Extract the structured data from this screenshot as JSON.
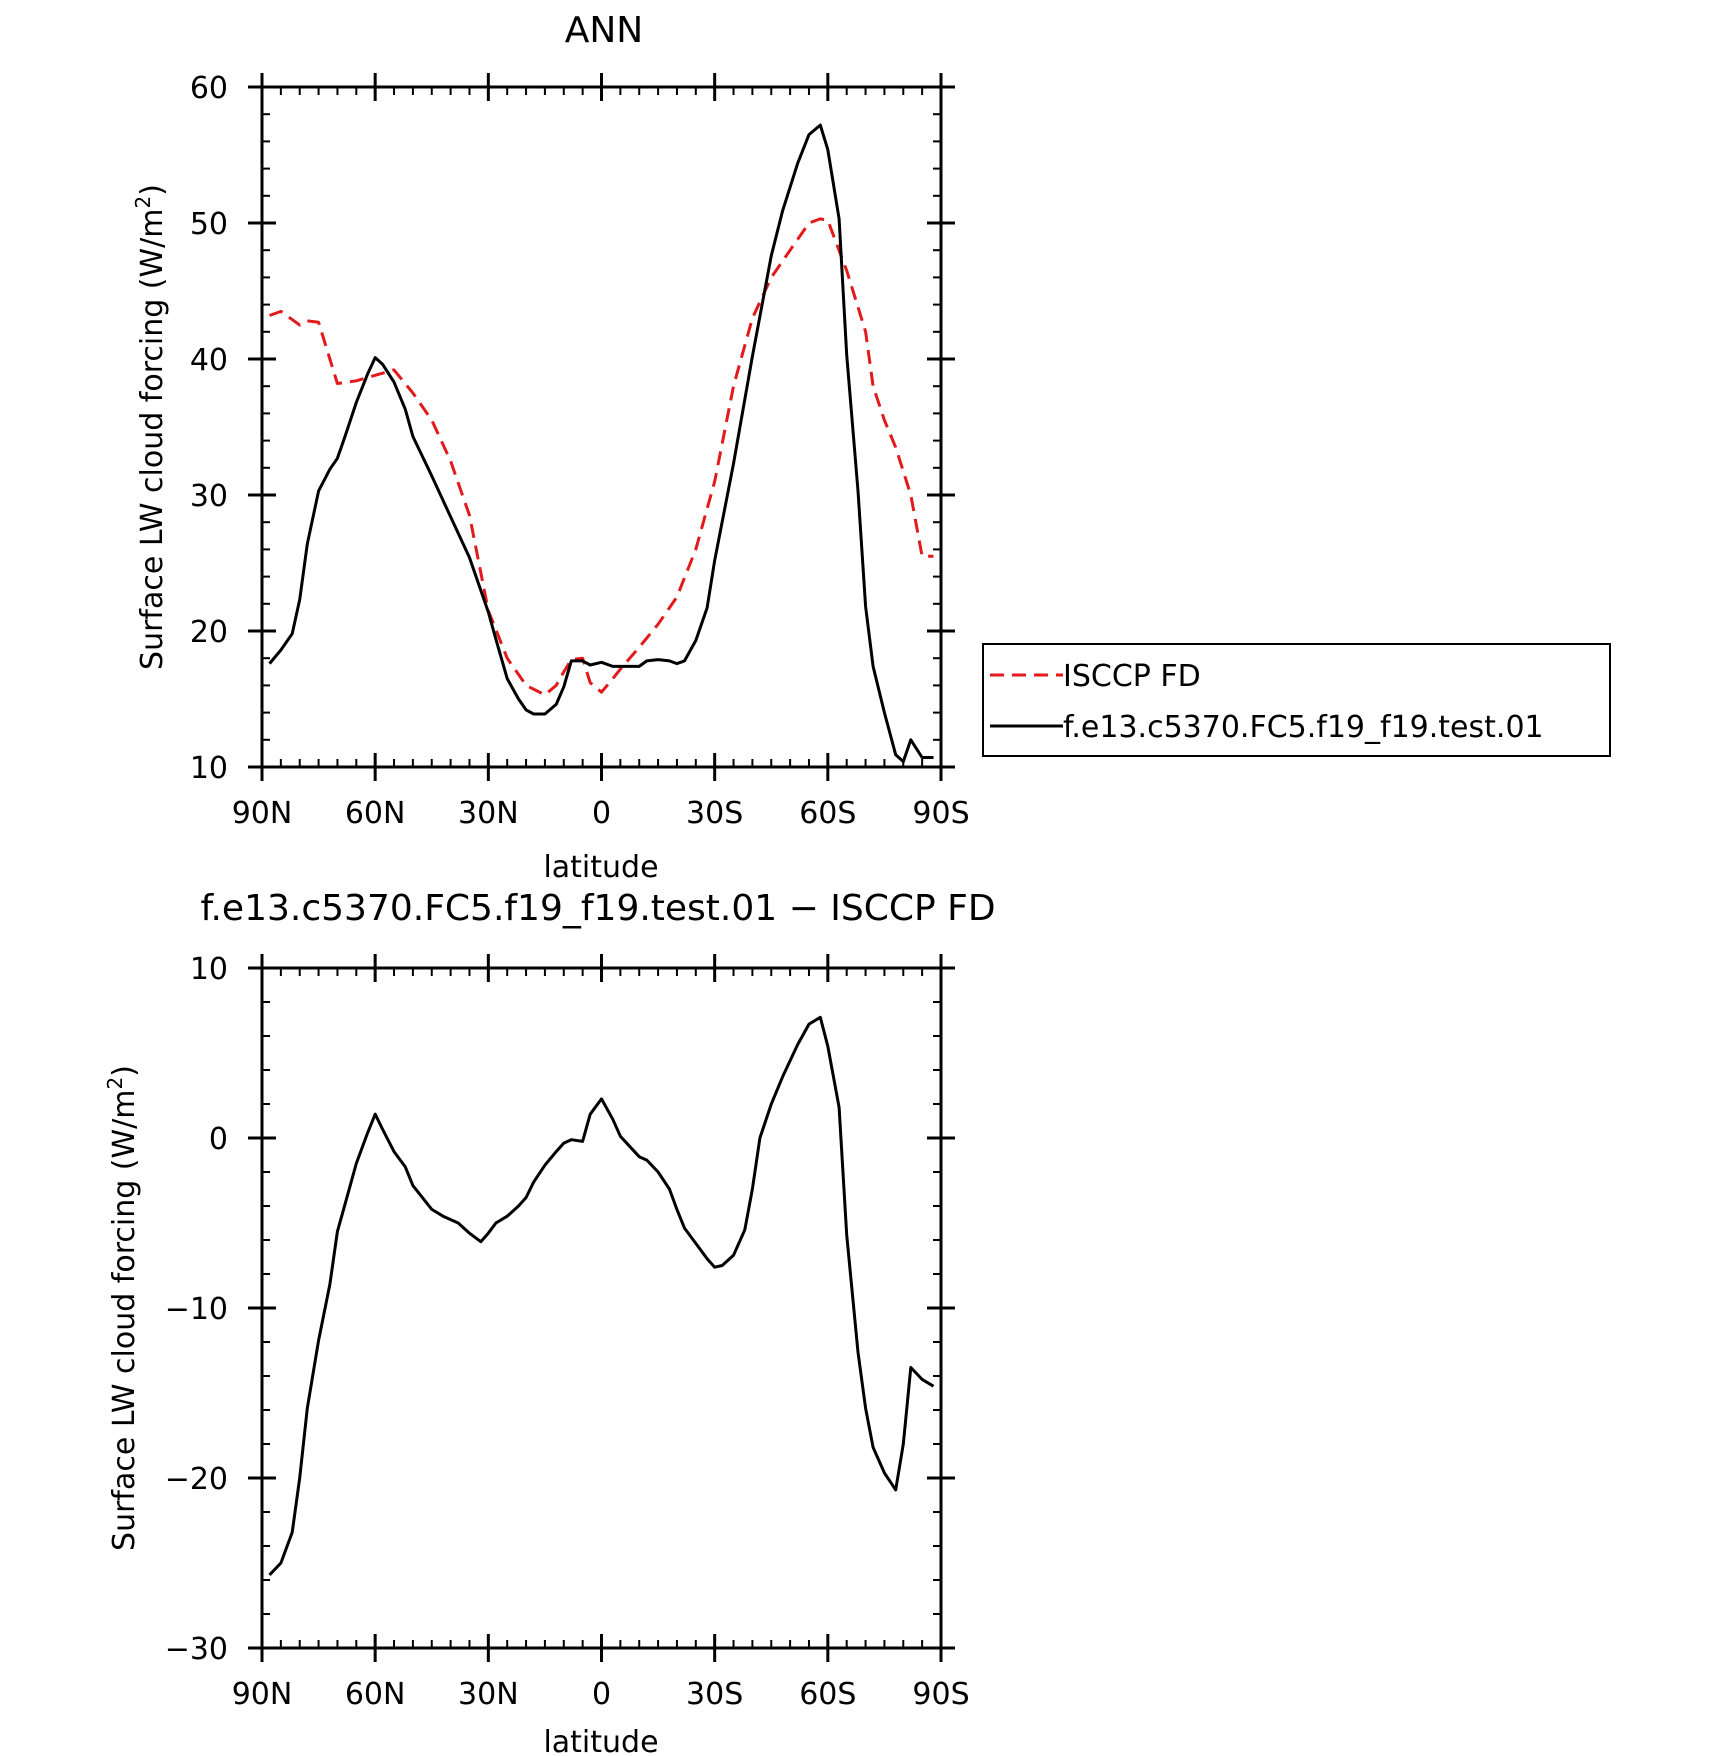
{
  "chart_data": [
    {
      "type": "line",
      "title": "ANN",
      "xlabel": "latitude",
      "ylabel": "Surface LW cloud forcing (W/m",
      "ylabel_sup": "2",
      "ylabel_end": ")",
      "xlim": [
        90,
        -90
      ],
      "ylim": [
        10,
        60
      ],
      "x_ticks": [
        90,
        60,
        30,
        0,
        -30,
        -60,
        -90
      ],
      "x_tick_labels": [
        "90N",
        "60N",
        "30N",
        "0",
        "30S",
        "60S",
        "90S"
      ],
      "y_ticks": [
        10,
        20,
        30,
        40,
        50,
        60
      ],
      "y_tick_labels": [
        "10",
        "20",
        "30",
        "40",
        "50",
        "60"
      ],
      "legend": {
        "placement": "right"
      },
      "series": [
        {
          "name": "ISCCP FD",
          "color": "#e31a1c",
          "dash": true,
          "x": [
            88,
            85,
            80,
            78,
            75,
            70,
            65,
            60,
            55,
            50,
            45,
            40,
            35,
            30,
            25,
            20,
            15,
            12,
            10,
            8,
            5,
            3,
            0,
            -3,
            -5,
            -10,
            -15,
            -20,
            -25,
            -30,
            -35,
            -40,
            -45,
            -50,
            -55,
            -58,
            -60,
            -65,
            -70,
            -72,
            -75,
            -78,
            -82,
            -85,
            -88
          ],
          "y": [
            43.2,
            43.5,
            42.5,
            42.8,
            42.7,
            38.2,
            38.4,
            38.8,
            39.2,
            37.5,
            35.5,
            32.5,
            28.5,
            21.5,
            18.0,
            16.0,
            15.3,
            16.0,
            17.0,
            17.9,
            18.0,
            16.2,
            15.5,
            16.5,
            17.2,
            18.8,
            20.5,
            22.5,
            26.0,
            31.0,
            38.0,
            43.0,
            46.0,
            48.0,
            50.0,
            50.3,
            50.2,
            46.5,
            42.0,
            38.0,
            35.5,
            33.5,
            30.0,
            25.5,
            25.5
          ]
        },
        {
          "name": "f.e13.c5370.FC5.f19_f19.test.01",
          "color": "#000000",
          "dash": false,
          "x": [
            88,
            85,
            82,
            80,
            78,
            75,
            72,
            70,
            68,
            65,
            62,
            60,
            58,
            55,
            52,
            50,
            45,
            40,
            35,
            30,
            28,
            25,
            22,
            20,
            18,
            15,
            12,
            10,
            8,
            5,
            3,
            0,
            -3,
            -5,
            -10,
            -12,
            -15,
            -18,
            -20,
            -22,
            -25,
            -28,
            -30,
            -35,
            -40,
            -45,
            -48,
            -52,
            -55,
            -58,
            -60,
            -63,
            -65,
            -68,
            -70,
            -72,
            -75,
            -78,
            -80,
            -82,
            -85,
            -88
          ],
          "y": [
            17.6,
            18.6,
            19.8,
            22.3,
            26.4,
            30.3,
            31.9,
            32.7,
            34.3,
            36.8,
            38.9,
            40.1,
            39.6,
            38.3,
            36.3,
            34.3,
            31.4,
            28.4,
            25.4,
            21.4,
            19.4,
            16.5,
            15.0,
            14.2,
            13.9,
            13.9,
            14.6,
            15.9,
            17.8,
            17.8,
            17.5,
            17.7,
            17.4,
            17.4,
            17.4,
            17.8,
            17.9,
            17.8,
            17.6,
            17.8,
            19.3,
            21.7,
            25.2,
            32.3,
            40.2,
            47.6,
            50.9,
            54.4,
            56.5,
            57.2,
            55.4,
            50.3,
            40.3,
            30.3,
            21.8,
            17.4,
            14.0,
            10.9,
            10.4,
            12.0,
            10.7,
            10.7
          ]
        }
      ]
    },
    {
      "type": "line",
      "title": "f.e13.c5370.FC5.f19_f19.test.01 − ISCCP FD",
      "xlabel": "latitude",
      "ylabel": "Surface LW cloud forcing (W/m",
      "ylabel_sup": "2",
      "ylabel_end": ")",
      "xlim": [
        90,
        -90
      ],
      "ylim": [
        -30,
        10
      ],
      "x_ticks": [
        90,
        60,
        30,
        0,
        -30,
        -60,
        -90
      ],
      "x_tick_labels": [
        "90N",
        "60N",
        "30N",
        "0",
        "30S",
        "60S",
        "90S"
      ],
      "y_ticks": [
        -30,
        -20,
        -10,
        0,
        10
      ],
      "y_tick_labels": [
        "−30",
        "−20",
        "−10",
        "0",
        "10"
      ],
      "series": [
        {
          "color": "#000000",
          "dash": false,
          "x": [
            88,
            85,
            82,
            80,
            78,
            75,
            72,
            70,
            68,
            65,
            62,
            60,
            58,
            55,
            52,
            50,
            45,
            42,
            40,
            38,
            35,
            32,
            30,
            28,
            25,
            22,
            20,
            18,
            15,
            12,
            10,
            8,
            5,
            3,
            0,
            -3,
            -5,
            -10,
            -12,
            -15,
            -18,
            -20,
            -22,
            -25,
            -28,
            -30,
            -32,
            -35,
            -38,
            -40,
            -42,
            -45,
            -48,
            -52,
            -55,
            -58,
            -60,
            -63,
            -65,
            -68,
            -70,
            -72,
            -75,
            -78,
            -80,
            -82,
            -85,
            -88
          ],
          "y": [
            -25.7,
            -25.0,
            -23.2,
            -20.0,
            -15.9,
            -11.9,
            -8.6,
            -5.5,
            -3.9,
            -1.5,
            0.3,
            1.4,
            0.5,
            -0.8,
            -1.7,
            -2.8,
            -4.2,
            -4.6,
            -4.8,
            -5.0,
            -5.6,
            -6.1,
            -5.6,
            -5.0,
            -4.6,
            -4.0,
            -3.5,
            -2.6,
            -1.6,
            -0.8,
            -0.3,
            -0.1,
            -0.2,
            1.4,
            2.3,
            1.1,
            0.1,
            -1.1,
            -1.3,
            -2.0,
            -3.0,
            -4.2,
            -5.3,
            -6.2,
            -7.1,
            -7.6,
            -7.5,
            -6.9,
            -5.4,
            -3.0,
            0.0,
            2.0,
            3.6,
            5.5,
            6.7,
            7.1,
            5.4,
            1.8,
            -5.7,
            -12.6,
            -15.9,
            -18.2,
            -19.7,
            -20.7,
            -18.0,
            -13.5,
            -14.2,
            -14.6
          ]
        }
      ]
    }
  ]
}
